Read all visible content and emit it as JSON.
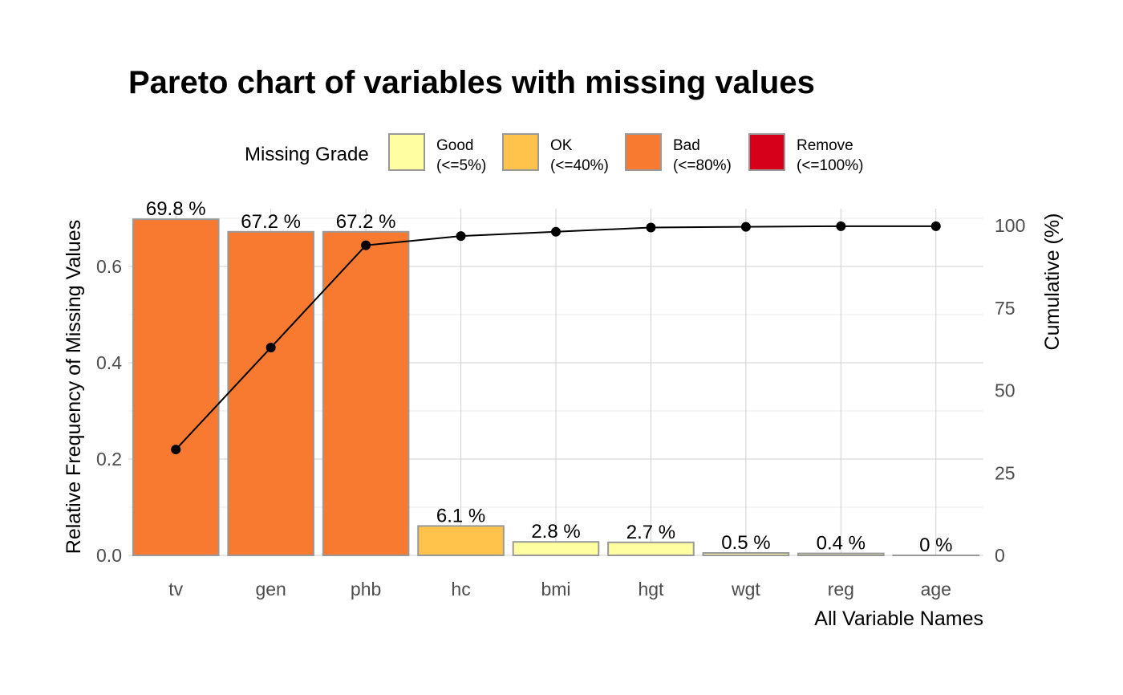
{
  "chart_data": {
    "type": "bar",
    "title": "Pareto chart of variables with missing values",
    "xlabel": "All Variable Names",
    "ylabel": "Relative Frequency of Missing Values",
    "y2label": "Cumulative (%)",
    "categories": [
      "tv",
      "gen",
      "phb",
      "hc",
      "bmi",
      "hgt",
      "wgt",
      "reg",
      "age"
    ],
    "values": [
      0.698,
      0.672,
      0.672,
      0.061,
      0.028,
      0.027,
      0.005,
      0.004,
      0.0
    ],
    "bar_labels": [
      "69.8 %",
      "67.2 %",
      "67.2 %",
      "6.1 %",
      "2.8 %",
      "2.7 %",
      "0.5 %",
      "0.4 %",
      "0 %"
    ],
    "grades": [
      "Bad",
      "Bad",
      "Bad",
      "OK",
      "Good",
      "Good",
      "Good",
      "Good",
      "Good"
    ],
    "cumulative": [
      32.1,
      63.0,
      94.0,
      96.8,
      98.1,
      99.4,
      99.6,
      99.8,
      99.8
    ],
    "ylim": [
      0,
      0.72
    ],
    "y_ticks": [
      0.0,
      0.2,
      0.4,
      0.6
    ],
    "y_tick_labels": [
      "0.0",
      "0.2",
      "0.4",
      "0.6"
    ],
    "y2lim": [
      0,
      100
    ],
    "y2_ticks": [
      0,
      25,
      50,
      75,
      100
    ],
    "y2_tick_labels": [
      "0",
      "25",
      "50",
      "75",
      "100"
    ],
    "grid": true,
    "legend": {
      "title": "Missing Grade",
      "placement": "top",
      "entries": [
        {
          "name": "Good",
          "range": "(<=5%)",
          "color": "#FFFFA1"
        },
        {
          "name": "OK",
          "range": "(<=40%)",
          "color": "#FFC34B"
        },
        {
          "name": "Bad",
          "range": "(<=80%)",
          "color": "#F77A30"
        },
        {
          "name": "Remove",
          "range": "(<=100%)",
          "color": "#D7001A"
        }
      ]
    },
    "colors": {
      "bar_border": "#999999",
      "line": "#000000"
    }
  }
}
